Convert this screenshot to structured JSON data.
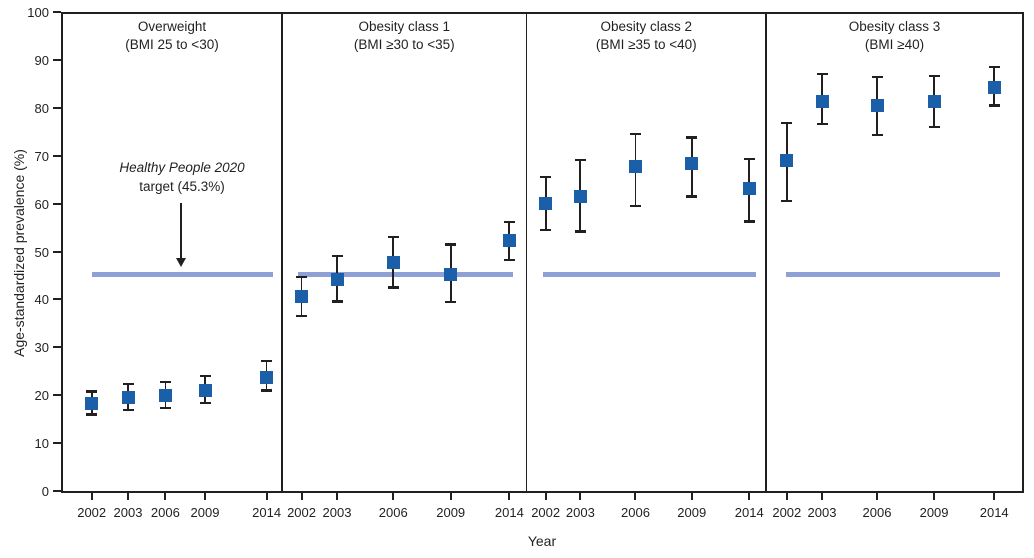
{
  "ui": {
    "y_axis_label": "Age-standardized prevalence (%)",
    "x_axis_label": "Year",
    "annotation": {
      "line1": "Healthy People 2020",
      "line2": "target (45.3%)"
    }
  },
  "colors": {
    "marker_blue": "#1a5fa8",
    "target_line_blue": "#8fa0d6",
    "axis_black": "#231f20"
  },
  "chart_data": {
    "type": "scatter",
    "title": "",
    "xlabel": "Year",
    "ylabel": "Age-standardized prevalence (%)",
    "ylim": [
      0,
      100
    ],
    "y_ticks": [
      0,
      10,
      20,
      30,
      40,
      50,
      60,
      70,
      80,
      90,
      100
    ],
    "x_categories": [
      "2002",
      "2003",
      "2006",
      "2009",
      "2014"
    ],
    "grid": false,
    "legend": "none",
    "marker": "filled-square-with-95ci-error-bars",
    "target_line": {
      "value": 45.3,
      "label_line1_italic": "Healthy People 2020",
      "label_line2": "target (45.3%)"
    },
    "panels": [
      {
        "title": "Overweight",
        "subtitle": "(BMI 25 to <30)",
        "values": [
          18.2,
          19.6,
          19.9,
          21.0,
          23.7
        ],
        "ci_low": [
          16.0,
          17.0,
          17.4,
          18.4,
          21.0
        ],
        "ci_high": [
          20.8,
          22.3,
          22.7,
          24.0,
          27.2
        ]
      },
      {
        "title": "Obesity class 1",
        "subtitle": "(BMI ≥30 to <35)",
        "values": [
          40.6,
          44.2,
          47.6,
          45.3,
          52.4
        ],
        "ci_low": [
          36.6,
          39.6,
          42.5,
          39.4,
          48.2
        ],
        "ci_high": [
          44.7,
          49.0,
          53.0,
          51.5,
          56.2
        ]
      },
      {
        "title": "Obesity class 2",
        "subtitle": "(BMI ≥35 to <40)",
        "values": [
          60.0,
          61.5,
          67.7,
          68.3,
          63.2
        ],
        "ci_low": [
          54.5,
          54.2,
          59.6,
          61.5,
          56.3
        ],
        "ci_high": [
          65.6,
          69.2,
          74.6,
          73.8,
          69.4
        ]
      },
      {
        "title": "Obesity class 3",
        "subtitle": "(BMI ≥40)",
        "values": [
          69.0,
          81.4,
          80.5,
          81.4,
          84.3
        ],
        "ci_low": [
          60.5,
          76.6,
          74.3,
          76.0,
          80.5
        ],
        "ci_high": [
          76.8,
          87.0,
          86.4,
          86.6,
          88.5
        ]
      }
    ]
  }
}
